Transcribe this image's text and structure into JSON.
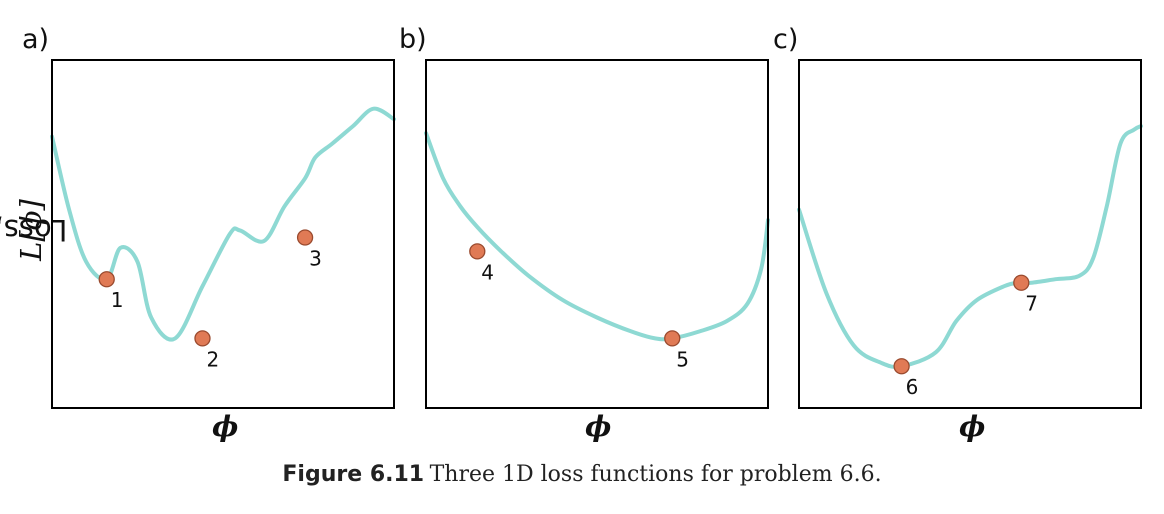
{
  "figure": {
    "number": "Figure 6.11",
    "caption": "Three 1D loss functions for problem 6.6."
  },
  "y_axis_label": {
    "text": "Loss, ",
    "symbol": "L[ϕ]"
  },
  "x_axis_symbol": "ϕ",
  "colors": {
    "curve": "#8ed9d3",
    "point_fill": "#e07a55",
    "point_stroke": "#9a4a2e",
    "frame": "#000000"
  },
  "panels": [
    {
      "label": "a)",
      "points": [
        {
          "label": "1"
        },
        {
          "label": "2"
        },
        {
          "label": "3"
        }
      ]
    },
    {
      "label": "b)",
      "points": [
        {
          "label": "4"
        },
        {
          "label": "5"
        }
      ]
    },
    {
      "label": "c)",
      "points": [
        {
          "label": "6"
        },
        {
          "label": "7"
        }
      ]
    }
  ],
  "chart_data": [
    {
      "type": "line",
      "title": "a)",
      "xlabel": "ϕ",
      "ylabel": "Loss, L[ϕ]",
      "x_range": [
        0,
        1
      ],
      "y_range": [
        0,
        1
      ],
      "grid": false,
      "series": [
        {
          "x": [
            0,
            0.05,
            0.1,
            0.16,
            0.2,
            0.25,
            0.29,
            0.36,
            0.44,
            0.52,
            0.55,
            0.62,
            0.68,
            0.74,
            0.77,
            0.82,
            0.88,
            0.94,
            1.0
          ],
          "y": [
            0.78,
            0.57,
            0.42,
            0.37,
            0.46,
            0.42,
            0.26,
            0.2,
            0.35,
            0.5,
            0.51,
            0.48,
            0.58,
            0.66,
            0.72,
            0.76,
            0.81,
            0.86,
            0.83
          ]
        }
      ],
      "points": [
        {
          "label": "1",
          "x": 0.16,
          "y": 0.37
        },
        {
          "label": "2",
          "x": 0.44,
          "y": 0.2
        },
        {
          "label": "3",
          "x": 0.74,
          "y": 0.49
        }
      ]
    },
    {
      "type": "line",
      "title": "b)",
      "xlabel": "ϕ",
      "ylabel": "",
      "x_range": [
        0,
        1
      ],
      "y_range": [
        0,
        1
      ],
      "grid": false,
      "series": [
        {
          "x": [
            0,
            0.05,
            0.1,
            0.15,
            0.22,
            0.3,
            0.4,
            0.5,
            0.6,
            0.67,
            0.72,
            0.8,
            0.88,
            0.94,
            0.98,
            1.0
          ],
          "y": [
            0.79,
            0.66,
            0.58,
            0.52,
            0.45,
            0.38,
            0.31,
            0.26,
            0.22,
            0.2,
            0.2,
            0.22,
            0.25,
            0.3,
            0.4,
            0.54
          ]
        }
      ],
      "points": [
        {
          "label": "4",
          "x": 0.15,
          "y": 0.45
        },
        {
          "label": "5",
          "x": 0.72,
          "y": 0.2
        }
      ]
    },
    {
      "type": "line",
      "title": "c)",
      "xlabel": "ϕ",
      "ylabel": "",
      "x_range": [
        0,
        1
      ],
      "y_range": [
        0,
        1
      ],
      "grid": false,
      "series": [
        {
          "x": [
            0,
            0.08,
            0.16,
            0.24,
            0.3,
            0.4,
            0.46,
            0.52,
            0.6,
            0.64,
            0.68,
            0.75,
            0.82,
            0.86,
            0.9,
            0.94,
            0.98,
            1.0
          ],
          "y": [
            0.57,
            0.33,
            0.18,
            0.13,
            0.12,
            0.16,
            0.25,
            0.31,
            0.35,
            0.36,
            0.36,
            0.37,
            0.38,
            0.43,
            0.58,
            0.76,
            0.8,
            0.81
          ]
        }
      ],
      "points": [
        {
          "label": "6",
          "x": 0.3,
          "y": 0.12
        },
        {
          "label": "7",
          "x": 0.65,
          "y": 0.36
        }
      ]
    }
  ]
}
